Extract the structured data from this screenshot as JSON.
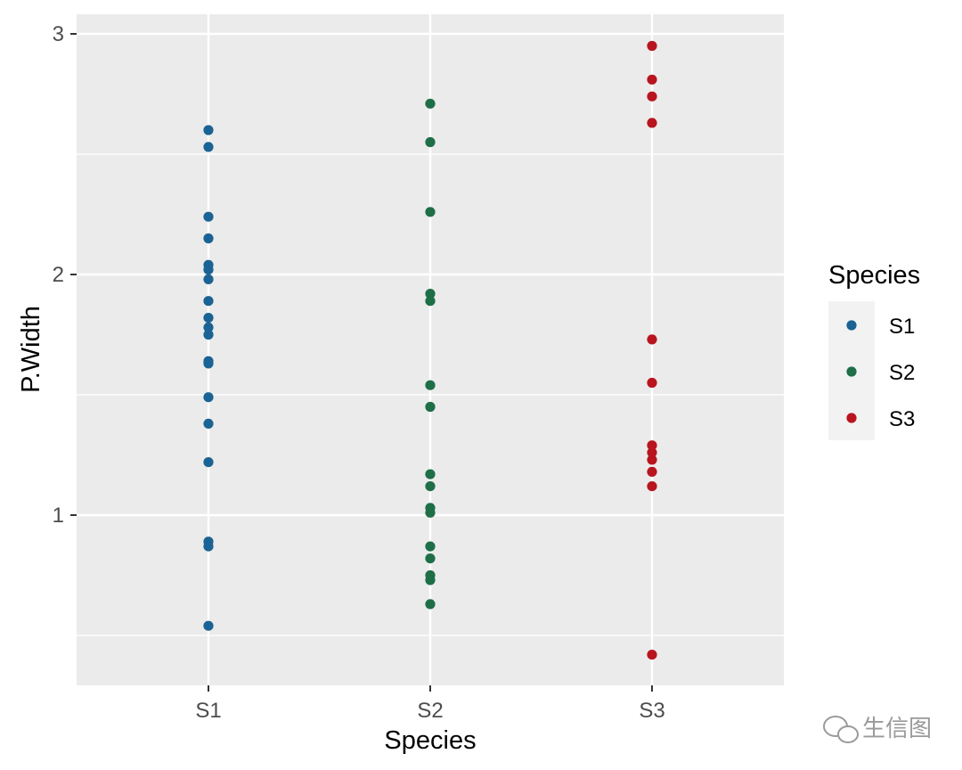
{
  "chart_data": {
    "type": "scatter",
    "title": "",
    "xlabel": "Species",
    "ylabel": "P.Width",
    "categories": [
      "S1",
      "S2",
      "S3"
    ],
    "y_ticks": [
      "1",
      "2",
      "3"
    ],
    "ylim": [
      0.3,
      3.08
    ],
    "grid": true,
    "legend": {
      "title": "Species",
      "position": "right"
    },
    "series": [
      {
        "name": "S1",
        "color": "#1a6394",
        "values": [
          2.6,
          2.53,
          2.24,
          2.15,
          2.04,
          2.02,
          1.98,
          1.89,
          1.82,
          1.78,
          1.75,
          1.64,
          1.63,
          1.49,
          1.38,
          1.22,
          0.89,
          0.87,
          0.54
        ]
      },
      {
        "name": "S2",
        "color": "#1e6e47",
        "values": [
          2.71,
          2.55,
          2.26,
          1.92,
          1.89,
          1.54,
          1.45,
          1.17,
          1.12,
          1.03,
          1.01,
          0.87,
          0.82,
          0.75,
          0.73,
          0.63
        ]
      },
      {
        "name": "S3",
        "color": "#b8151e",
        "values": [
          2.95,
          2.81,
          2.74,
          2.63,
          1.73,
          1.55,
          1.29,
          1.26,
          1.23,
          1.18,
          1.12,
          0.42
        ]
      }
    ]
  },
  "watermark": {
    "text": "生信图",
    "icon": "wechat-icon"
  }
}
